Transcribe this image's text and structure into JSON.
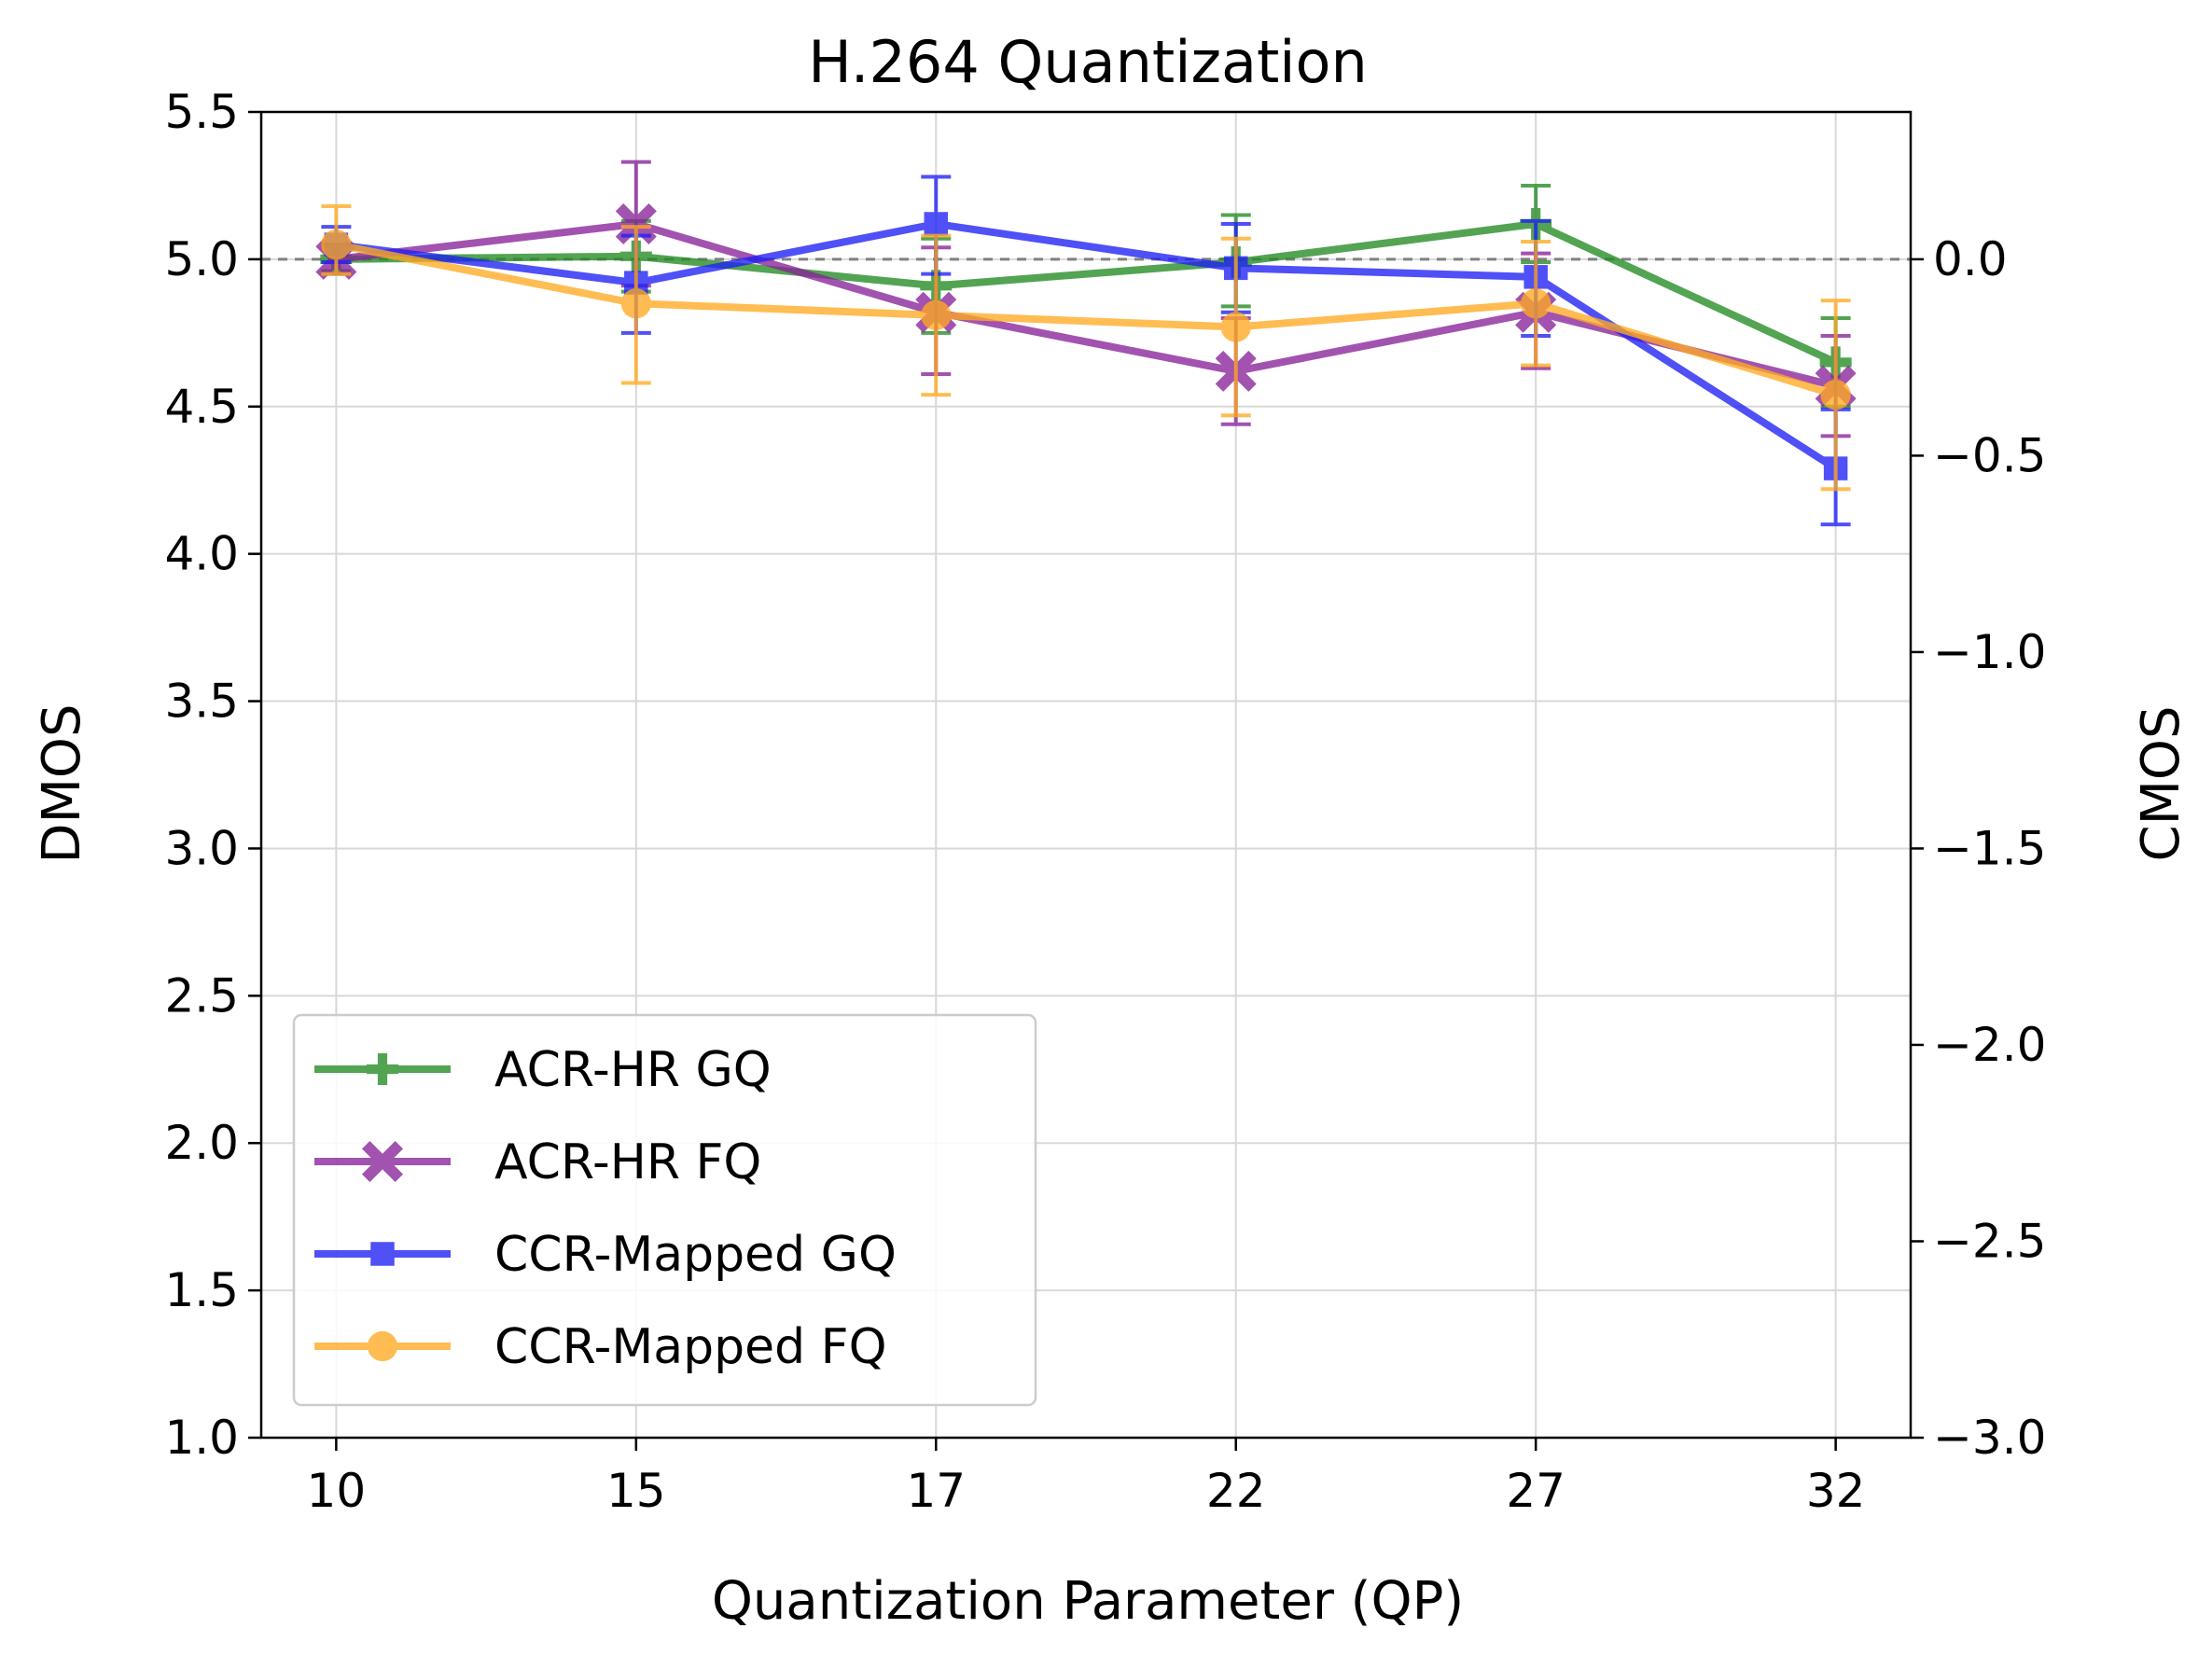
{
  "chart_data": {
    "type": "line",
    "title": "H.264 Quantization",
    "xlabel": "Quantization Parameter (QP)",
    "ylabel": "DMOS",
    "ylabel_right": "CMOS",
    "categories": [
      "10",
      "15",
      "17",
      "22",
      "27",
      "32"
    ],
    "ylim": [
      1.0,
      5.5
    ],
    "ylim_right": [
      -3.0,
      0.375
    ],
    "yticks": [
      "1.0",
      "1.5",
      "2.0",
      "2.5",
      "3.0",
      "3.5",
      "4.0",
      "4.5",
      "5.0",
      "5.5"
    ],
    "yticks_right": [
      "0.0",
      "−0.5",
      "−1.0",
      "−1.5",
      "−2.0",
      "−2.5",
      "−3.0"
    ],
    "yticks_right_values": [
      0.0,
      -0.5,
      -1.0,
      -1.5,
      -2.0,
      -2.5,
      -3.0
    ],
    "reference_line": 5.0,
    "grid": true,
    "legend_position": "lower-left",
    "series": [
      {
        "name": "ACR-HR GQ",
        "color": "#228B22",
        "marker": "plus",
        "values": [
          5.0,
          5.01,
          4.91,
          4.99,
          5.12,
          4.65
        ],
        "err_low": [
          4.96,
          4.89,
          4.75,
          4.84,
          4.99,
          4.5
        ],
        "err_high": [
          5.05,
          5.13,
          5.07,
          5.15,
          5.25,
          4.8
        ]
      },
      {
        "name": "ACR-HR FQ",
        "color": "#882299",
        "marker": "x",
        "values": [
          5.0,
          5.12,
          4.82,
          4.62,
          4.82,
          4.57
        ],
        "err_low": [
          4.95,
          4.91,
          4.61,
          4.44,
          4.63,
          4.4
        ],
        "err_high": [
          5.05,
          5.33,
          5.04,
          4.8,
          5.02,
          4.74
        ]
      },
      {
        "name": "CCR-Mapped GQ",
        "color": "#1f1ff5",
        "marker": "square",
        "values": [
          5.05,
          4.92,
          5.12,
          4.97,
          4.94,
          4.29
        ],
        "err_low": [
          4.99,
          4.75,
          4.95,
          4.82,
          4.74,
          4.1
        ],
        "err_high": [
          5.11,
          5.08,
          5.28,
          5.12,
          5.13,
          4.49
        ]
      },
      {
        "name": "CCR-Mapped FQ",
        "color": "#FFAA22",
        "marker": "circle",
        "values": [
          5.05,
          4.85,
          4.81,
          4.77,
          4.85,
          4.54
        ],
        "err_low": [
          4.95,
          4.58,
          4.54,
          4.47,
          4.64,
          4.22
        ],
        "err_high": [
          5.18,
          5.11,
          5.08,
          5.07,
          5.06,
          4.86
        ]
      }
    ]
  }
}
